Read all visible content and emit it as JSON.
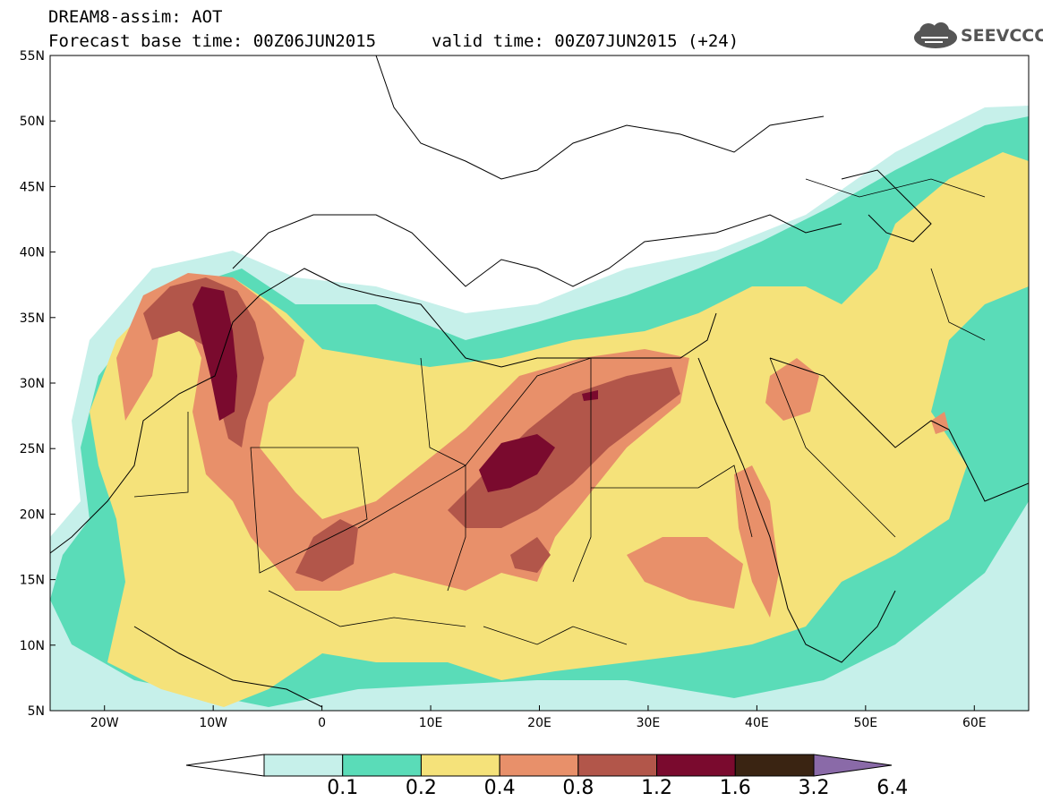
{
  "header": {
    "line1": "DREAM8-assim: AOT",
    "line2": "Forecast base time: 00Z06JUN2015",
    "valid": "valid time: 00Z07JUN2015 (+24)"
  },
  "logo": {
    "text": "SEEVCCC",
    "icon": "cloud-icon"
  },
  "axes": {
    "lat_labels": [
      "55N",
      "50N",
      "45N",
      "40N",
      "35N",
      "30N",
      "25N",
      "20N",
      "15N",
      "10N",
      "5N"
    ],
    "lon_labels": [
      "20W",
      "10W",
      "0",
      "10E",
      "20E",
      "30E",
      "40E",
      "50E",
      "60E"
    ],
    "lon_range": [
      -25,
      65
    ],
    "lat_range": [
      5,
      55
    ]
  },
  "legend": {
    "labels": [
      "0.1",
      "0.2",
      "0.4",
      "0.8",
      "1.2",
      "1.6",
      "3.2",
      "6.4"
    ],
    "colors": [
      "#ffffff",
      "#c6f0ea",
      "#5adcb8",
      "#f5e27a",
      "#e8906a",
      "#b2564a",
      "#7a0a2e",
      "#3a2412",
      "#8a6aa8"
    ]
  }
}
